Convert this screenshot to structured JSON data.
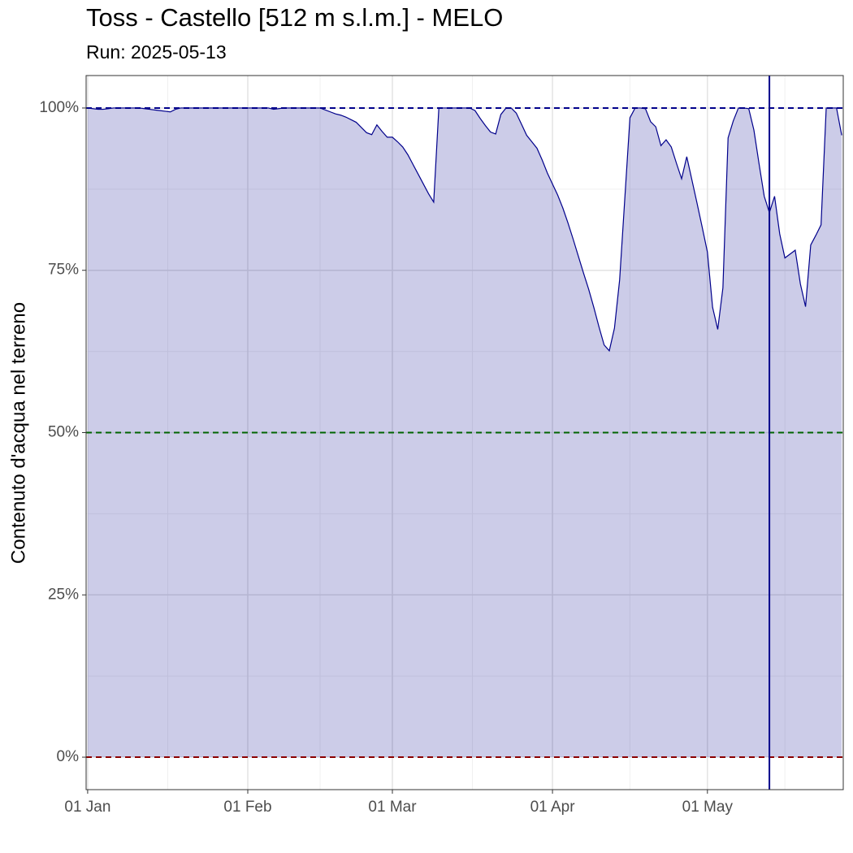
{
  "chart_data": {
    "type": "area",
    "title": "Toss - Castello [512 m s.l.m.] - MELO",
    "subtitle": "Run: 2025-05-13",
    "y_label": "Contenuto d'acqua nel terreno",
    "x": [
      "01 Jan",
      "02 Jan",
      "03 Jan",
      "04 Jan",
      "05 Jan",
      "06 Jan",
      "07 Jan",
      "08 Jan",
      "09 Jan",
      "10 Jan",
      "11 Jan",
      "12 Jan",
      "13 Jan",
      "14 Jan",
      "15 Jan",
      "16 Jan",
      "17 Jan",
      "18 Jan",
      "19 Jan",
      "20 Jan",
      "21 Jan",
      "22 Jan",
      "23 Jan",
      "24 Jan",
      "25 Jan",
      "26 Jan",
      "27 Jan",
      "28 Jan",
      "29 Jan",
      "30 Jan",
      "31 Jan",
      "01 Feb",
      "02 Feb",
      "03 Feb",
      "04 Feb",
      "05 Feb",
      "06 Feb",
      "07 Feb",
      "08 Feb",
      "09 Feb",
      "10 Feb",
      "11 Feb",
      "12 Feb",
      "13 Feb",
      "14 Feb",
      "15 Feb",
      "16 Feb",
      "17 Feb",
      "18 Feb",
      "19 Feb",
      "20 Feb",
      "21 Feb",
      "22 Feb",
      "23 Feb",
      "24 Feb",
      "25 Feb",
      "26 Feb",
      "27 Feb",
      "28 Feb",
      "01 Mar",
      "02 Mar",
      "03 Mar",
      "04 Mar",
      "05 Mar",
      "06 Mar",
      "07 Mar",
      "08 Mar",
      "09 Mar",
      "10 Mar",
      "11 Mar",
      "12 Mar",
      "13 Mar",
      "14 Mar",
      "15 Mar",
      "16 Mar",
      "17 Mar",
      "18 Mar",
      "19 Mar",
      "20 Mar",
      "21 Mar",
      "22 Mar",
      "23 Mar",
      "24 Mar",
      "25 Mar",
      "26 Mar",
      "27 Mar",
      "28 Mar",
      "29 Mar",
      "30 Mar",
      "31 Mar",
      "01 Apr",
      "02 Apr",
      "03 Apr",
      "04 Apr",
      "05 Apr",
      "06 Apr",
      "07 Apr",
      "08 Apr",
      "09 Apr",
      "10 Apr",
      "11 Apr",
      "12 Apr",
      "13 Apr",
      "14 Apr",
      "15 Apr",
      "16 Apr",
      "17 Apr",
      "18 Apr",
      "19 Apr",
      "20 Apr",
      "21 Apr",
      "22 Apr",
      "23 Apr",
      "24 Apr",
      "25 Apr",
      "26 Apr",
      "27 Apr",
      "28 Apr",
      "29 Apr",
      "30 Apr",
      "01 May",
      "02 May",
      "03 May",
      "04 May",
      "05 May",
      "06 May",
      "07 May",
      "08 May",
      "09 May",
      "10 May",
      "11 May",
      "12 May",
      "13 May",
      "14 May",
      "15 May",
      "16 May",
      "17 May",
      "18 May",
      "19 May",
      "20 May",
      "21 May",
      "22 May",
      "23 May",
      "24 May",
      "25 May",
      "26 May",
      "27 May"
    ],
    "values": [
      100,
      99.9,
      99.8,
      99.8,
      99.9,
      100,
      100,
      100,
      100,
      100,
      100,
      99.9,
      99.8,
      99.7,
      99.6,
      99.5,
      99.4,
      99.8,
      100,
      100,
      100,
      100,
      100,
      100,
      100,
      100,
      100,
      100,
      100,
      100,
      100,
      100,
      100,
      100,
      100,
      100,
      99.8,
      99.9,
      100,
      100,
      100,
      100,
      100,
      100,
      100,
      100,
      99.7,
      99.4,
      99.1,
      98.9,
      98.6,
      98.2,
      97.8,
      97.0,
      96.2,
      95.9,
      97.4,
      96.4,
      95.5,
      95.5,
      94.8,
      94.0,
      92.8,
      91.3,
      89.8,
      88.3,
      86.8,
      85.5,
      100,
      100,
      100,
      100,
      100,
      100,
      100,
      99.6,
      98.4,
      97.3,
      96.3,
      96.0,
      99.0,
      100,
      100,
      99.2,
      97.5,
      95.8,
      94.8,
      93.8,
      92.0,
      90.0,
      88.3,
      86.6,
      84.6,
      82.3,
      79.8,
      77.2,
      74.6,
      72.1,
      69.3,
      66.3,
      63.5,
      62.6,
      66.1,
      73.5,
      86.0,
      98.5,
      100,
      100,
      99.9,
      97.9,
      97.1,
      94.2,
      95.1,
      94.0,
      91.5,
      89.1,
      92.5,
      88.9,
      85.3,
      81.6,
      77.8,
      69.3,
      65.9,
      72.3,
      95.4,
      98.0,
      100,
      100,
      99.9,
      96.6,
      91.4,
      86.4,
      83.9,
      86.4,
      80.6,
      76.9,
      77.5,
      78.1,
      72.9,
      69.4,
      78.9,
      80.4,
      82.0,
      100,
      100,
      100,
      95.8
    ],
    "line_color": "#00008b",
    "fill_color": "#00008b",
    "fill_opacity": 0.2,
    "ylim": [
      -5,
      105
    ],
    "yticks": [
      {
        "value": 0,
        "label": "0%"
      },
      {
        "value": 25,
        "label": "25%"
      },
      {
        "value": 50,
        "label": "50%"
      },
      {
        "value": 75,
        "label": "75%"
      },
      {
        "value": 100,
        "label": "100%"
      }
    ],
    "xticks": [
      "01 Jan",
      "01 Feb",
      "01 Mar",
      "01 Apr",
      "01 May"
    ],
    "hlines": [
      {
        "value": 100,
        "color": "#00008b"
      },
      {
        "value": 50,
        "color": "#006400"
      },
      {
        "value": 0,
        "color": "#8b0000"
      }
    ],
    "vline": {
      "x": "13 May",
      "color": "#00008b"
    },
    "grid": true
  }
}
